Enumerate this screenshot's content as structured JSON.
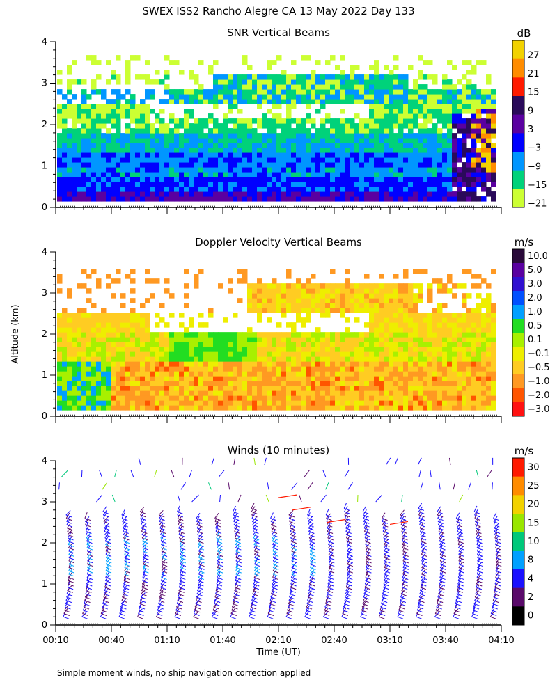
{
  "figure": {
    "title": "SWEX ISS2 Rancho Alegre CA  13 May 2022 Day 133",
    "ylabel": "Altitude (km)",
    "xlabel": "Time (UT)",
    "footnote": "Simple moment winds, no ship navigation correction applied"
  },
  "chart_data": [
    {
      "type": "heatmap",
      "title": "SNR Vertical Beams",
      "ylabel": "Altitude (km)",
      "ylim": [
        0,
        4
      ],
      "y_ticks": [
        "0",
        "1",
        "2",
        "3",
        "4"
      ],
      "x_ticks": [
        "00:10",
        "00:40",
        "01:10",
        "01:40",
        "02:10",
        "02:40",
        "03:10",
        "03:40",
        "04:10"
      ],
      "xlim_minutes": [
        10,
        250
      ],
      "colorbar": {
        "unit": "dB",
        "labels": [
          "27",
          "21",
          "15",
          "9",
          "3",
          "−3",
          "−9",
          "−15",
          "−21"
        ],
        "colors": [
          "#f2d200",
          "#ff8c00",
          "#ff1a00",
          "#2a0a5a",
          "#5a00a0",
          "#0000ff",
          "#0096ff",
          "#00d27a",
          "#ccff33"
        ]
      }
    },
    {
      "type": "heatmap",
      "title": "Doppler Velocity Vertical Beams",
      "ylabel": "Altitude (km)",
      "ylim": [
        0,
        4
      ],
      "y_ticks": [
        "0",
        "1",
        "2",
        "3",
        "4"
      ],
      "x_ticks": [
        "00:10",
        "00:40",
        "01:10",
        "01:40",
        "02:10",
        "02:40",
        "03:10",
        "03:40",
        "04:10"
      ],
      "xlim_minutes": [
        10,
        250
      ],
      "colorbar": {
        "unit": "m/s",
        "labels": [
          "10.0",
          "5.0",
          "3.0",
          "2.0",
          "1.0",
          "0.5",
          "0.1",
          "−0.1",
          "−0.5",
          "−1.0",
          "−2.0",
          "−3.0"
        ],
        "colors": [
          "#2a0a3a",
          "#5a00a0",
          "#3010d0",
          "#0050ff",
          "#00a0ff",
          "#22dd22",
          "#a8f000",
          "#eeee00",
          "#ffcc22",
          "#ff9922",
          "#ff5500",
          "#ff1111"
        ]
      }
    },
    {
      "type": "scatter",
      "title": "Winds (10 minutes)",
      "ylabel": "Altitude (km)",
      "ylim": [
        0,
        4
      ],
      "y_ticks": [
        "0",
        "1",
        "2",
        "3",
        "4"
      ],
      "x_ticks": [
        "00:10",
        "00:40",
        "01:10",
        "01:40",
        "02:10",
        "02:40",
        "03:10",
        "03:40",
        "04:10"
      ],
      "xlim_minutes": [
        10,
        250
      ],
      "colorbar": {
        "unit": "m/s",
        "labels": [
          "30",
          "25",
          "20",
          "15",
          "10",
          "8",
          "4",
          "2",
          "0"
        ],
        "colors": [
          "#ff1a00",
          "#ff8c00",
          "#f2d200",
          "#99e600",
          "#00c87a",
          "#00a0ff",
          "#1a10ff",
          "#5a0a6a",
          "#000000"
        ]
      }
    }
  ]
}
